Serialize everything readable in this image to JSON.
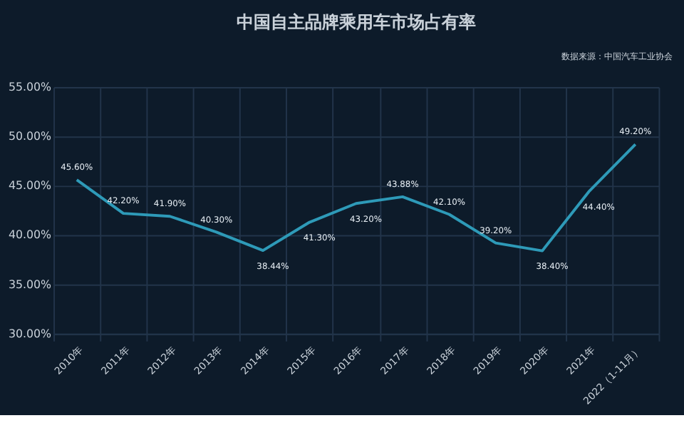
{
  "chart_data": {
    "type": "line",
    "title": "中国自主品牌乘用车市场占有率",
    "annotations": [
      "数据来源：中国汽车工业协会"
    ],
    "categories": [
      "2010年",
      "2011年",
      "2012年",
      "2013年",
      "2014年",
      "2015年",
      "2016年",
      "2017年",
      "2018年",
      "2019年",
      "2020年",
      "2021年",
      "2022（1-11月）"
    ],
    "series": [
      {
        "color": "#2e9ab8",
        "values": [
          45.6,
          42.2,
          41.9,
          40.3,
          38.44,
          41.3,
          43.2,
          43.88,
          42.1,
          39.2,
          38.4,
          44.4,
          49.2
        ],
        "value_labels": [
          "45.60%",
          "42.20%",
          "41.90%",
          "40.30%",
          "38.44%",
          "41.30%",
          "43.20%",
          "43.88%",
          "42.10%",
          "39.20%",
          "38.40%",
          "44.40%",
          "49.20%"
        ]
      }
    ],
    "ylim": [
      30,
      55
    ],
    "yticks": [
      {
        "value": 30,
        "label": "30.00%"
      },
      {
        "value": 35,
        "label": "35.00%"
      },
      {
        "value": 40,
        "label": "40.00%"
      },
      {
        "value": 45,
        "label": "45.00%"
      },
      {
        "value": 50,
        "label": "50.00%"
      },
      {
        "value": 55,
        "label": "55.00%"
      }
    ],
    "grid": true,
    "marker": "none",
    "line_style": "solid"
  }
}
